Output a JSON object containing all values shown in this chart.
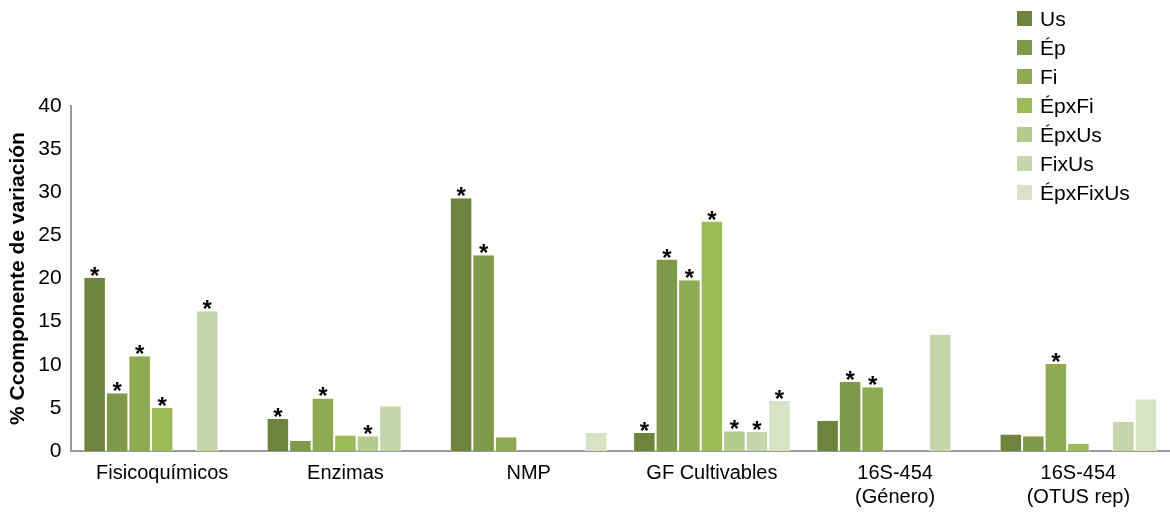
{
  "chart_data": {
    "type": "bar",
    "ylabel": "% Ccomponente de variación",
    "categories": [
      "Fisicoquímicos",
      "Enzimas",
      "NMP",
      "GF Cultivables",
      "16S-454\n(Género)",
      "16S-454\n(OTUS rep)"
    ],
    "series": [
      {
        "name": "Us",
        "color": "#6e843c",
        "values": [
          20.1,
          3.7,
          29.3,
          2.1,
          3.5,
          1.9
        ],
        "value_labels": [
          "*",
          "*",
          "*",
          "*",
          null,
          null
        ]
      },
      {
        "name": "Ép",
        "color": "#7f994a",
        "values": [
          6.7,
          1.2,
          22.7,
          22.2,
          8.0,
          1.7
        ],
        "value_labels": [
          "*",
          null,
          "*",
          "*",
          "*",
          null
        ]
      },
      {
        "name": "Fi",
        "color": "#8fab52",
        "values": [
          11.0,
          6.1,
          1.6,
          19.8,
          7.4,
          10.1
        ],
        "value_labels": [
          "*",
          "*",
          null,
          "*",
          "*",
          "*"
        ]
      },
      {
        "name": "ÉpxFi",
        "color": "#9dbb59",
        "values": [
          5.0,
          1.8,
          0,
          26.6,
          0,
          0.8
        ],
        "value_labels": [
          "*",
          null,
          null,
          "*",
          null,
          null
        ]
      },
      {
        "name": "ÉpxUs",
        "color": "#b3cb8d",
        "values": [
          0,
          1.7,
          0,
          2.3,
          0,
          0
        ],
        "value_labels": [
          null,
          "*",
          null,
          "*",
          null,
          null
        ]
      },
      {
        "name": "FixUs",
        "color": "#c6d5ac",
        "values": [
          16.2,
          5.2,
          0,
          2.2,
          13.5,
          3.4
        ],
        "value_labels": [
          "*",
          null,
          null,
          "*",
          null,
          null
        ]
      },
      {
        "name": "ÉpxFixUs",
        "color": "#d8e3c6",
        "values": [
          0,
          0,
          2.1,
          5.8,
          0,
          6.0
        ],
        "value_labels": [
          null,
          null,
          null,
          "*",
          null,
          null
        ]
      }
    ],
    "ylim": [
      0,
      40
    ],
    "yticks": [
      0,
      5,
      10,
      15,
      20,
      25,
      30,
      35,
      40
    ],
    "grid": false,
    "legend": "top right"
  }
}
